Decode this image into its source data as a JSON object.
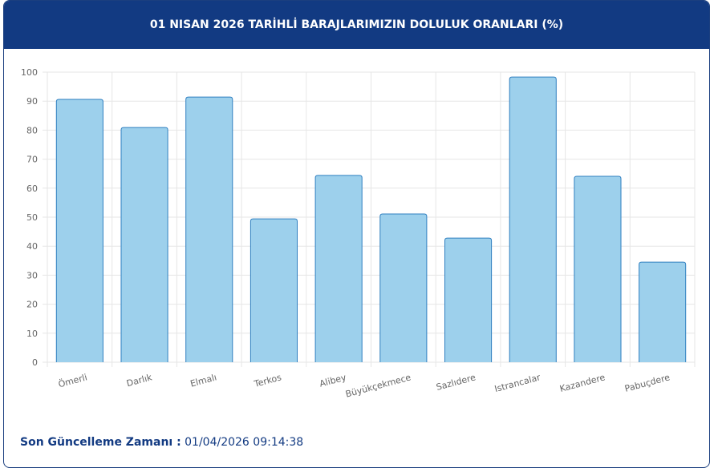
{
  "chart_data": {
    "type": "bar",
    "title": "01 NISAN 2026 TARİHLİ BARAJLARIMIZIN DOLULUK ORANLARI (%)",
    "categories": [
      "Ömerli",
      "Darlık",
      "Elmalı",
      "Terkos",
      "Alibey",
      "Büyükçekmece",
      "Sazlıdere",
      "Istrancalar",
      "Kazandere",
      "Pabuçdere"
    ],
    "values": [
      90.6,
      80.9,
      91.4,
      49.4,
      64.4,
      51.1,
      42.8,
      98.3,
      64.1,
      34.5
    ],
    "color": "#9dd0ec",
    "stroke": "#2f7fc0",
    "ylim": [
      0,
      100
    ],
    "yticks": [
      0,
      10,
      20,
      30,
      40,
      50,
      60,
      70,
      80,
      90,
      100
    ],
    "grid": true
  },
  "footer": {
    "label": "Son Güncelleme Zamanı :",
    "timestamp": "01/04/2026 09:14:38"
  }
}
